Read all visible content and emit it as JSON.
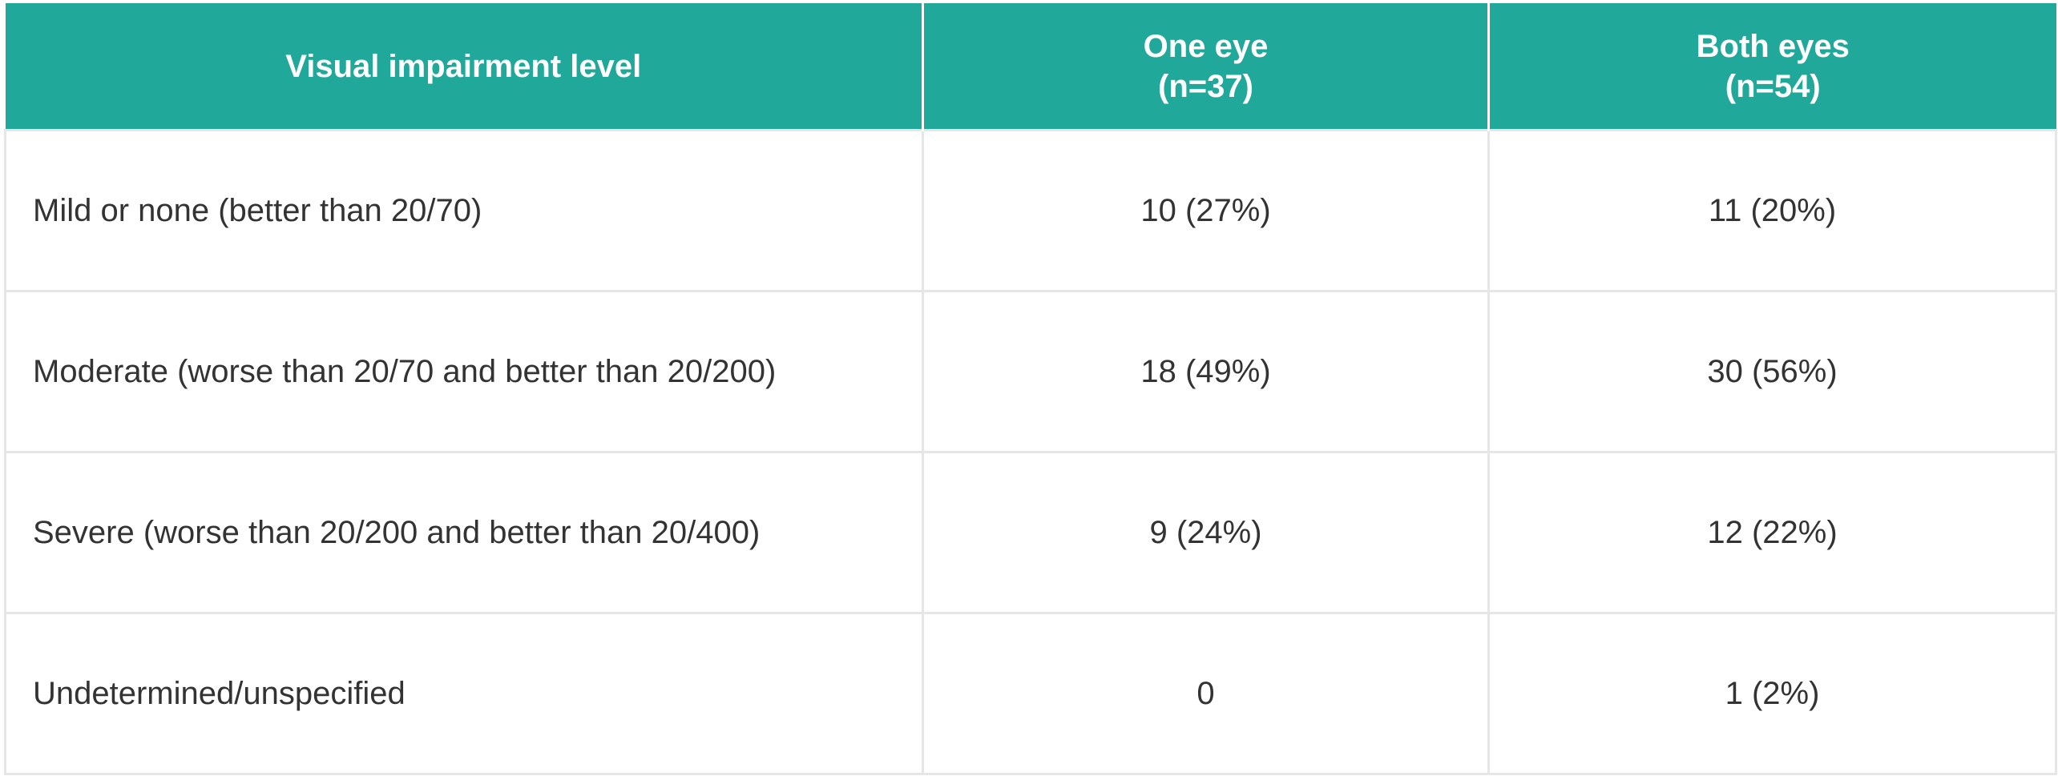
{
  "table": {
    "columns": [
      {
        "lines": [
          "Visual impairment level"
        ]
      },
      {
        "lines": [
          "One eye",
          "(n=37)"
        ]
      },
      {
        "lines": [
          "Both eyes",
          "(n=54)"
        ]
      }
    ],
    "rows": [
      {
        "label": "Mild or none (better than 20/70)",
        "one_eye": "10 (27%)",
        "both_eyes": "11 (20%)"
      },
      {
        "label": "Moderate (worse than 20/70 and better than 20/200)",
        "one_eye": "18 (49%)",
        "both_eyes": "30 (56%)"
      },
      {
        "label": "Severe (worse than 20/200 and better than 20/400)",
        "one_eye": "9 (24%)",
        "both_eyes": "12 (22%)"
      },
      {
        "label": "Undetermined/unspecified",
        "one_eye": "0",
        "both_eyes": "1 (2%)"
      }
    ]
  },
  "colors": {
    "header_bg": "#20a89a",
    "header_text": "#ffffff",
    "body_text": "#333333",
    "grid": "#e6e6e6"
  }
}
